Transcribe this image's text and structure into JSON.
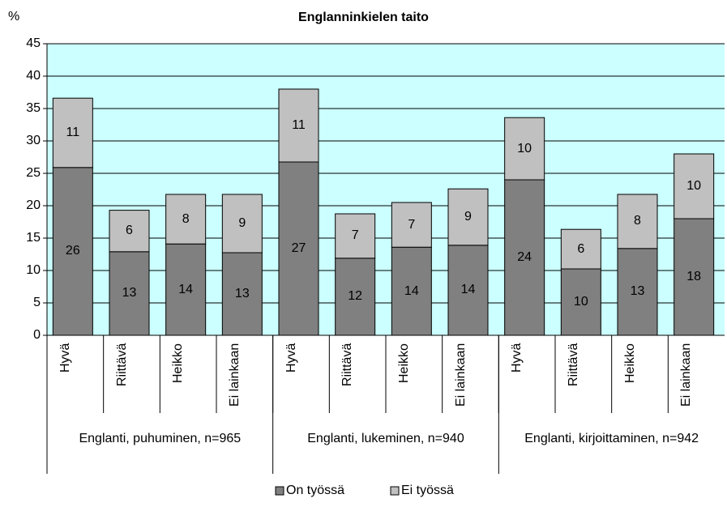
{
  "chart_data": {
    "type": "bar",
    "stacked": true,
    "title": "Englanninkielen taito",
    "y_label": "%",
    "categories": [
      "Hyvä",
      "Riittävä",
      "Heikko",
      "Ei lainkaan",
      "Hyvä",
      "Riittävä",
      "Heikko",
      "Ei lainkaan",
      "Hyvä",
      "Riittävä",
      "Heikko",
      "Ei lainkaan"
    ],
    "groups": [
      "Englanti, puhuminen, n=965",
      "Englanti, lukeminen, n=940",
      "Englanti, kirjoittaminen, n=942"
    ],
    "series": [
      {
        "name": "On työssä",
        "color": "#808080",
        "values": [
          25.9,
          12.9,
          14.1,
          12.75,
          26.75,
          11.9,
          13.6,
          13.9,
          24,
          10.25,
          13.4,
          18
        ],
        "value_labels": [
          "26",
          "13",
          "14",
          "13",
          "27",
          "12",
          "14",
          "14",
          "24",
          "10",
          "13",
          "18"
        ]
      },
      {
        "name": "Ei työssä",
        "color": "#c0c0c0",
        "values": [
          10.7,
          6.4,
          7.65,
          9,
          11.25,
          6.85,
          6.9,
          8.7,
          9.6,
          6.1,
          8.35,
          10
        ],
        "value_labels": [
          "11",
          "6",
          "8",
          "9",
          "11",
          "7",
          "7",
          "9",
          "10",
          "6",
          "8",
          "10"
        ]
      }
    ],
    "ylim": [
      0,
      45
    ],
    "yticks": [
      0,
      5,
      10,
      15,
      20,
      25,
      30,
      35,
      40,
      45
    ],
    "grid": true,
    "plot_background": "#ccffff",
    "legend": "bottom"
  }
}
